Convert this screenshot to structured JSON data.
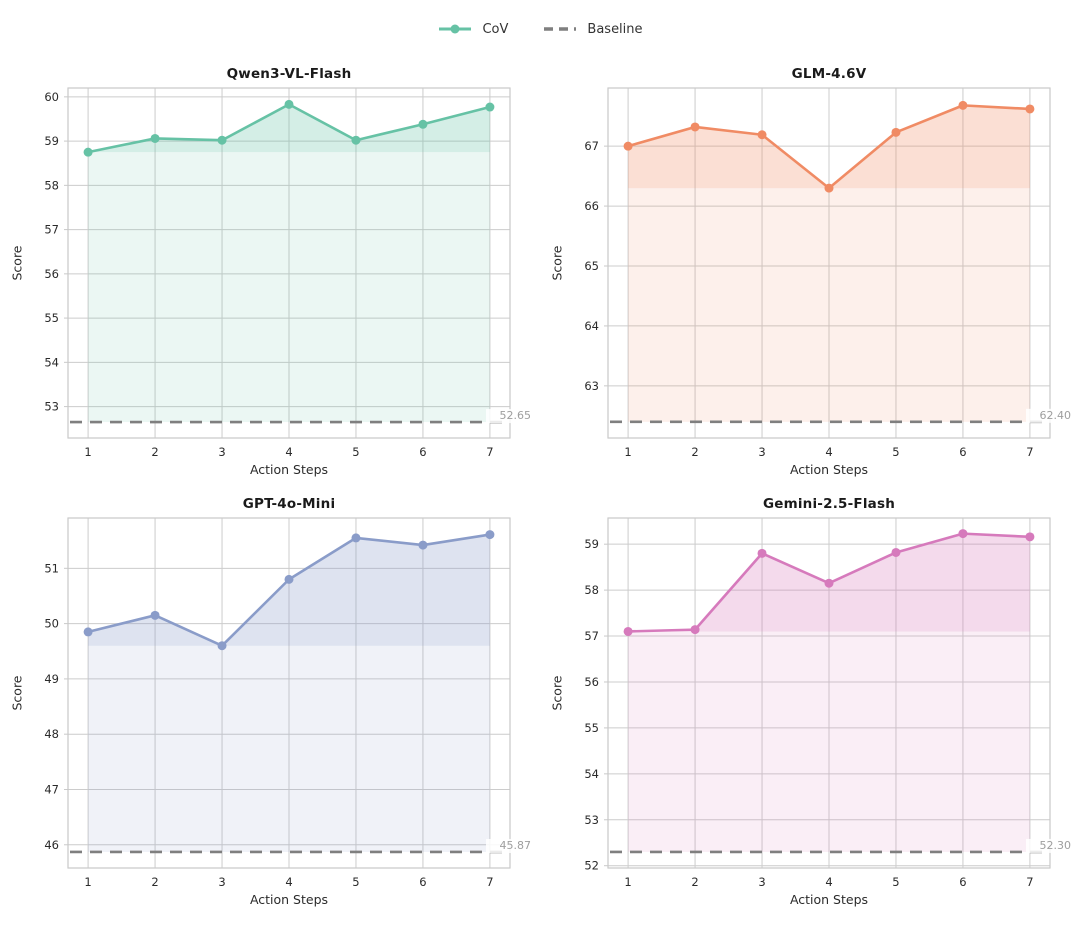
{
  "legend": {
    "items": [
      {
        "label": "CoV",
        "color": "#66c2a5",
        "style": "solid-with-marker"
      },
      {
        "label": "Baseline",
        "color": "#7f7f7f",
        "style": "dashed"
      }
    ]
  },
  "style": {
    "grid_color": "#cccccc",
    "spine_color": "#c9c9c9",
    "tick_label_color": "#2b2b2b",
    "baseline_color": "#7f7f7f",
    "baseline_label_color": "#9e9e9e",
    "fill_alpha_dark": 0.28,
    "fill_alpha_light": 0.13
  },
  "chart_data": [
    {
      "type": "line",
      "title": "Qwen3-VL-Flash",
      "xlabel": "Action Steps",
      "ylabel": "Score",
      "series": [
        {
          "name": "CoV",
          "color": "#66c2a5",
          "x": [
            1,
            2,
            3,
            4,
            5,
            6,
            7
          ],
          "values": [
            58.75,
            59.06,
            59.02,
            59.83,
            59.02,
            59.38,
            59.77
          ]
        }
      ],
      "baseline": {
        "value": 52.65,
        "label": "52.65"
      },
      "xlim": [
        0.7,
        7.3
      ],
      "ylim": [
        52.29,
        60.2
      ],
      "xticks": [
        1,
        2,
        3,
        4,
        5,
        6,
        7
      ],
      "yticks": [
        53,
        54,
        55,
        56,
        57,
        58,
        59,
        60
      ],
      "grid": true
    },
    {
      "type": "line",
      "title": "GLM-4.6V",
      "xlabel": "Action Steps",
      "ylabel": "Score",
      "series": [
        {
          "name": "CoV",
          "color": "#f08b64",
          "x": [
            1,
            2,
            3,
            4,
            5,
            6,
            7
          ],
          "values": [
            67.0,
            67.32,
            67.19,
            66.3,
            67.23,
            67.68,
            67.62
          ]
        }
      ],
      "baseline": {
        "value": 62.4,
        "label": "62.40"
      },
      "xlim": [
        0.7,
        7.3
      ],
      "ylim": [
        62.13,
        67.97
      ],
      "xticks": [
        1,
        2,
        3,
        4,
        5,
        6,
        7
      ],
      "yticks": [
        63,
        64,
        65,
        66,
        67
      ],
      "grid": true
    },
    {
      "type": "line",
      "title": "GPT-4o-Mini",
      "xlabel": "Action Steps",
      "ylabel": "Score",
      "series": [
        {
          "name": "CoV",
          "color": "#8a9cc9",
          "x": [
            1,
            2,
            3,
            4,
            5,
            6,
            7
          ],
          "values": [
            49.85,
            50.15,
            49.6,
            50.8,
            51.55,
            51.42,
            51.61
          ]
        }
      ],
      "baseline": {
        "value": 45.87,
        "label": "45.87"
      },
      "xlim": [
        0.7,
        7.3
      ],
      "ylim": [
        45.58,
        51.91
      ],
      "xticks": [
        1,
        2,
        3,
        4,
        5,
        6,
        7
      ],
      "yticks": [
        46,
        47,
        48,
        49,
        50,
        51
      ],
      "grid": true
    },
    {
      "type": "line",
      "title": "Gemini-2.5-Flash",
      "xlabel": "Action Steps",
      "ylabel": "Score",
      "series": [
        {
          "name": "CoV",
          "color": "#d67abc",
          "x": [
            1,
            2,
            3,
            4,
            5,
            6,
            7
          ],
          "values": [
            57.1,
            57.14,
            58.8,
            58.15,
            58.82,
            59.23,
            59.16
          ]
        }
      ],
      "baseline": {
        "value": 52.3,
        "label": "52.30"
      },
      "xlim": [
        0.7,
        7.3
      ],
      "ylim": [
        51.95,
        59.57
      ],
      "xticks": [
        1,
        2,
        3,
        4,
        5,
        6,
        7
      ],
      "yticks": [
        52,
        53,
        54,
        55,
        56,
        57,
        58,
        59
      ],
      "grid": true
    }
  ]
}
